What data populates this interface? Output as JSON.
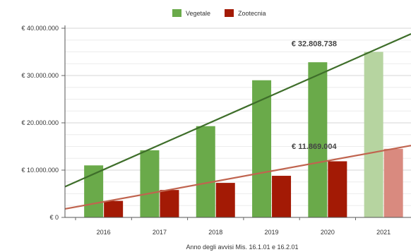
{
  "chart_data": {
    "type": "bar",
    "categories": [
      "2016",
      "2017",
      "2018",
      "2019",
      "2020",
      "2021"
    ],
    "series": [
      {
        "name": "Vegetale",
        "color": "#6aaa4a",
        "values": [
          11000000,
          14200000,
          19300000,
          29000000,
          32808738,
          35000000
        ]
      },
      {
        "name": "Zootecnia",
        "color": "#a31a05",
        "values": [
          3500000,
          5800000,
          7300000,
          8800000,
          11869004,
          14500000
        ]
      }
    ],
    "projected_category": "2021",
    "projected_colors": {
      "Vegetale": "#b6d4a0",
      "Zootecnia": "#d98a7f"
    },
    "trendlines": [
      {
        "series": "Vegetale",
        "color": "#3e6e2a",
        "start_value": 6500000,
        "end_value": 38800000
      },
      {
        "series": "Zootecnia",
        "color": "#c0644f",
        "start_value": 1800000,
        "end_value": 15200000
      }
    ],
    "annotations": [
      {
        "text": "€ 32.808.738",
        "category": "2020",
        "value": 36800000
      },
      {
        "text": "€ 11.869.004",
        "category": "2020",
        "value": 15100000
      }
    ],
    "y_ticks": [
      {
        "value": 0,
        "label": "€ 0"
      },
      {
        "value": 10000000,
        "label": "€ 10.000.000"
      },
      {
        "value": 20000000,
        "label": "€ 20.000.000"
      },
      {
        "value": 30000000,
        "label": "€ 30.000.000"
      },
      {
        "value": 40000000,
        "label": "€ 40.000.000"
      }
    ],
    "ylim": [
      0,
      40000000
    ],
    "grid": true,
    "legend_position": "top-center",
    "xlabel": "Anno degli avvisi Mis. 16.1.01 e 16.2.01",
    "ylabel": "",
    "title": ""
  }
}
